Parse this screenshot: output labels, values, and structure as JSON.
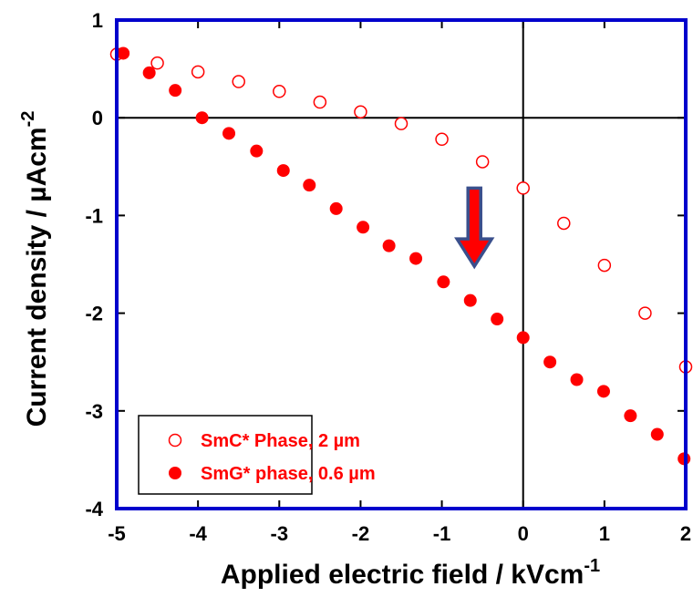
{
  "chart_data": {
    "type": "scatter",
    "xlabel": "Applied electric field / kVcm",
    "xlabel_sup": "-1",
    "ylabel": "Current density / µAcm",
    "ylabel_sup": "-2",
    "xlim": [
      -5,
      2
    ],
    "ylim": [
      -4,
      1
    ],
    "x_ticks": [
      "-5",
      "-4",
      "-3",
      "-2",
      "-1",
      "0",
      "1",
      "2"
    ],
    "y_ticks": [
      "1",
      "0",
      "-1",
      "-2",
      "-3",
      "-4"
    ],
    "zero_lines": true,
    "legend_position": "bottom-left",
    "colors": {
      "frame": "#0000cc",
      "marker": "#ff0000",
      "arrow_fill": "#ff0000",
      "arrow_edge": "#3a4f8c"
    },
    "annotation": {
      "type": "down-arrow",
      "x": -0.6,
      "y_top": -0.72,
      "y_bottom": -1.52
    },
    "series": [
      {
        "name": "SmC* Phase, 2 µm",
        "marker": "open-circle",
        "x": [
          -5.0,
          -4.5,
          -4.0,
          -3.5,
          -3.0,
          -2.5,
          -2.0,
          -1.5,
          -1.0,
          -0.5,
          0.0,
          0.5,
          1.0,
          1.5,
          2.0
        ],
        "y": [
          0.65,
          0.56,
          0.47,
          0.37,
          0.27,
          0.16,
          0.06,
          -0.06,
          -0.22,
          -0.45,
          -0.72,
          -1.08,
          -1.51,
          -2.0,
          -2.55
        ]
      },
      {
        "name": "SmG* phase, 0.6 µm",
        "marker": "filled-circle",
        "x": [
          -4.92,
          -4.6,
          -4.28,
          -3.95,
          -3.62,
          -3.28,
          -2.95,
          -2.63,
          -2.3,
          -1.97,
          -1.65,
          -1.32,
          -0.98,
          -0.65,
          -0.32,
          0.0,
          0.33,
          0.66,
          0.99,
          1.32,
          1.65,
          1.98
        ],
        "y": [
          0.66,
          0.46,
          0.28,
          0.0,
          -0.16,
          -0.34,
          -0.54,
          -0.69,
          -0.93,
          -1.12,
          -1.31,
          -1.44,
          -1.68,
          -1.87,
          -2.06,
          -2.25,
          -2.5,
          -2.68,
          -2.8,
          -3.05,
          -3.24,
          -3.49
        ]
      }
    ]
  }
}
